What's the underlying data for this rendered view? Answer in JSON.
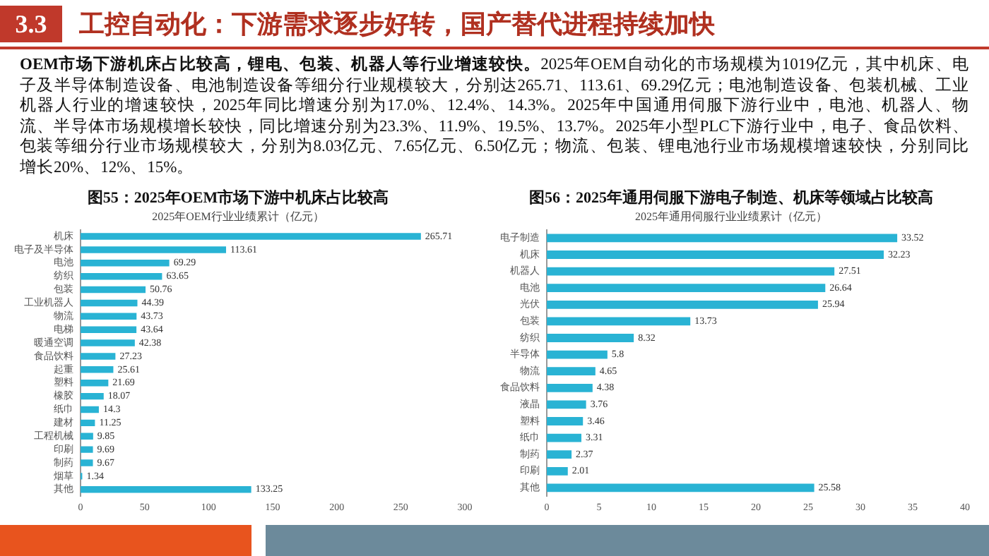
{
  "chart_data": [
    {
      "type": "other",
      "title": "工控自动化：下游需求逐步好转，国产替代进程持续加快",
      "annotations": [
        "3.3",
        "OEM市场下游机床占比较高，锂电、包装、机器人等行业增速较快。",
        "2025年OEM自动化的市场规模为1019亿元，其中机床、电子及半导体制造设备、电池制造设备等细分行业规模较大，分别达265.71、113.61、69.29亿元；电池制造设备、包装机械、工业机器人行业的增速较快，2025年同比增速分别为17.0%、12.4%、14.3%。2025年中国通用伺服下游行业中，电池、机器人、物流、半导体市场规模增长较快，同比增速分别为23.3%、11.9%、19.5%、13.7%。2025年小型PLC下游行业中，电子、食品饮料、包装等细分行业市场规模较大，分别为8.03亿元、7.65亿元、6.50亿元；物流、包装、锂电池行业市场规模增速较快，分别同比增长20%、12%、15%。"
      ]
    },
    {
      "type": "bar",
      "orientation": "horizontal",
      "title": "图55：2025年OEM市场下游中机床占比较高",
      "subtitle": "2025年OEM行业业绩累计（亿元）",
      "categories": [
        "机床",
        "电子及半导体",
        "电池",
        "纺织",
        "包装",
        "工业机器人",
        "物流",
        "电梯",
        "暖通空调",
        "食品饮料",
        "起重",
        "塑料",
        "橡胶",
        "纸巾",
        "建材",
        "工程机械",
        "印刷",
        "制药",
        "烟草",
        "其他"
      ],
      "values": [
        265.71,
        113.61,
        69.29,
        63.65,
        50.76,
        44.39,
        43.73,
        43.64,
        42.38,
        27.23,
        25.61,
        21.69,
        18.07,
        14.3,
        11.25,
        9.85,
        9.69,
        9.67,
        1.34,
        133.25
      ],
      "color": "#29b3d4",
      "xlim": [
        0,
        300
      ],
      "xticks": [
        0,
        50,
        100,
        150,
        200,
        250,
        300
      ],
      "data_labels": true,
      "grid": false,
      "legend": false
    },
    {
      "type": "bar",
      "orientation": "horizontal",
      "title": "图56：2025年通用伺服下游电子制造、机床等领域占比较高",
      "subtitle": "2025年通用伺服行业业绩累计（亿元）",
      "categories": [
        "电子制造",
        "机床",
        "机器人",
        "电池",
        "光伏",
        "包装",
        "纺织",
        "半导体",
        "物流",
        "食品饮料",
        "液晶",
        "塑料",
        "纸巾",
        "制药",
        "印刷",
        "其他"
      ],
      "values": [
        33.52,
        32.23,
        27.51,
        26.64,
        25.94,
        13.73,
        8.32,
        5.8,
        4.65,
        4.38,
        3.76,
        3.46,
        3.31,
        2.37,
        2.01,
        25.58
      ],
      "color": "#29b3d4",
      "xlim": [
        0,
        40
      ],
      "xticks": [
        0,
        5,
        10,
        15,
        20,
        25,
        30,
        35,
        40
      ],
      "data_labels": true,
      "grid": false,
      "legend": false
    }
  ]
}
